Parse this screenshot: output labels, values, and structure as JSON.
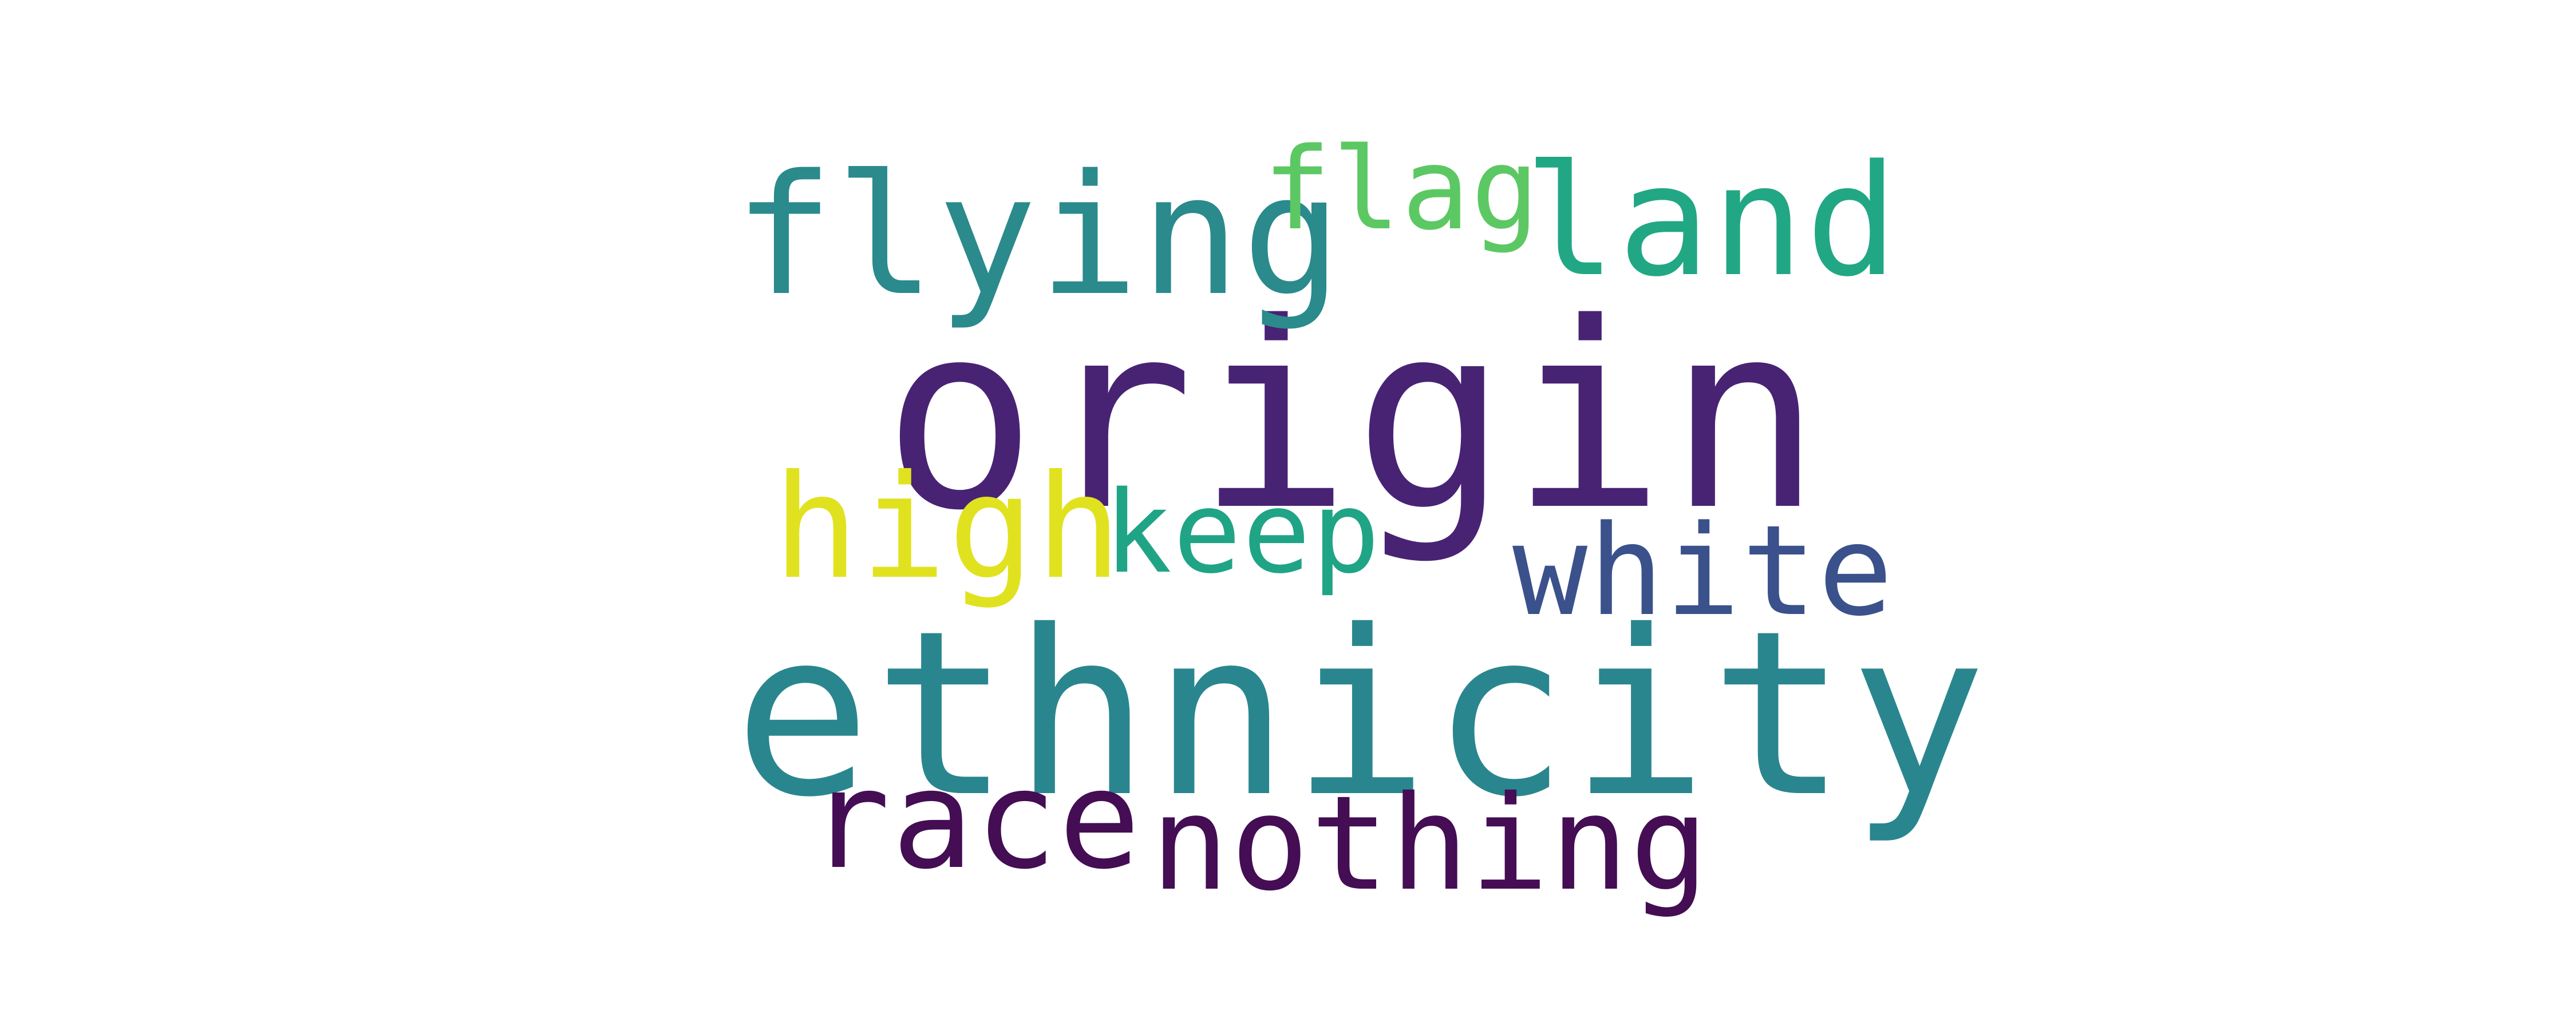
{
  "word_cloud": {
    "words": [
      {
        "text": "origin",
        "color": "#482374"
      },
      {
        "text": "ethnicity",
        "color": "#2a868e"
      },
      {
        "text": "flying",
        "color": "#2a8a8c"
      },
      {
        "text": "land",
        "color": "#22a784"
      },
      {
        "text": "flag",
        "color": "#5cc863"
      },
      {
        "text": "high",
        "color": "#e1e21f"
      },
      {
        "text": "keep",
        "color": "#20a486"
      },
      {
        "text": "white",
        "color": "#3b518b"
      },
      {
        "text": "race",
        "color": "#440d54"
      },
      {
        "text": "nothing",
        "color": "#440d54"
      }
    ]
  }
}
